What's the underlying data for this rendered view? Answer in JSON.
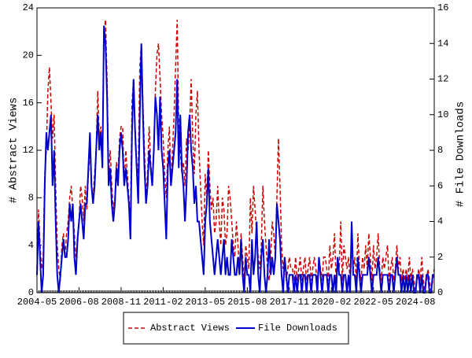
{
  "chart_data": {
    "type": "line",
    "x": [
      "2004-05",
      "2004-06",
      "2004-07",
      "2004-08",
      "2004-09",
      "2004-10",
      "2004-11",
      "2004-12",
      "2005-01",
      "2005-02",
      "2005-03",
      "2005-04",
      "2005-05",
      "2005-06",
      "2005-07",
      "2005-08",
      "2005-09",
      "2005-10",
      "2005-11",
      "2005-12",
      "2006-01",
      "2006-02",
      "2006-03",
      "2006-04",
      "2006-05",
      "2006-06",
      "2006-07",
      "2006-08",
      "2006-09",
      "2006-10",
      "2006-11",
      "2006-12",
      "2007-01",
      "2007-02",
      "2007-03",
      "2007-04",
      "2007-05",
      "2007-06",
      "2007-07",
      "2007-08",
      "2007-09",
      "2007-10",
      "2007-11",
      "2007-12",
      "2008-01",
      "2008-02",
      "2008-03",
      "2008-04",
      "2008-05",
      "2008-06",
      "2008-07",
      "2008-08",
      "2008-09",
      "2008-10",
      "2008-11",
      "2008-12",
      "2009-01",
      "2009-02",
      "2009-03",
      "2009-04",
      "2009-05",
      "2009-06",
      "2009-07",
      "2009-08",
      "2009-09",
      "2009-10",
      "2009-11",
      "2009-12",
      "2010-01",
      "2010-02",
      "2010-03",
      "2010-04",
      "2010-05",
      "2010-06",
      "2010-07",
      "2010-08",
      "2010-09",
      "2010-10",
      "2010-11",
      "2010-12",
      "2011-01",
      "2011-02",
      "2011-03",
      "2011-04",
      "2011-05",
      "2011-06",
      "2011-07",
      "2011-08",
      "2011-09",
      "2011-10",
      "2011-11",
      "2011-12",
      "2012-01",
      "2012-02",
      "2012-03",
      "2012-04",
      "2012-05",
      "2012-06",
      "2012-07",
      "2012-08",
      "2012-09",
      "2012-10",
      "2012-11",
      "2012-12",
      "2013-01",
      "2013-02",
      "2013-03",
      "2013-04",
      "2013-05",
      "2013-06",
      "2013-07",
      "2013-08",
      "2013-09",
      "2013-10",
      "2013-11",
      "2013-12",
      "2014-01",
      "2014-02",
      "2014-03",
      "2014-04",
      "2014-05",
      "2014-06",
      "2014-07",
      "2014-08",
      "2014-09",
      "2014-10",
      "2014-11",
      "2014-12",
      "2015-01",
      "2015-02",
      "2015-03",
      "2015-04",
      "2015-05",
      "2015-06",
      "2015-07",
      "2015-08",
      "2015-09",
      "2015-10",
      "2015-11",
      "2015-12",
      "2016-01",
      "2016-02",
      "2016-03",
      "2016-04",
      "2016-05",
      "2016-06",
      "2016-07",
      "2016-08",
      "2016-09",
      "2016-10",
      "2016-11",
      "2016-12",
      "2017-01",
      "2017-02",
      "2017-03",
      "2017-04",
      "2017-05",
      "2017-06",
      "2017-07",
      "2017-08",
      "2017-09",
      "2017-10",
      "2017-11",
      "2017-12",
      "2018-01",
      "2018-02",
      "2018-03",
      "2018-04",
      "2018-05",
      "2018-06",
      "2018-07",
      "2018-08",
      "2018-09",
      "2018-10",
      "2018-11",
      "2018-12",
      "2019-01",
      "2019-02",
      "2019-03",
      "2019-04",
      "2019-05",
      "2019-06",
      "2019-07",
      "2019-08",
      "2019-09",
      "2019-10",
      "2019-11",
      "2019-12",
      "2020-01",
      "2020-02",
      "2020-03",
      "2020-04",
      "2020-05",
      "2020-06",
      "2020-07",
      "2020-08",
      "2020-09",
      "2020-10",
      "2020-11",
      "2020-12",
      "2021-01",
      "2021-02",
      "2021-03",
      "2021-04",
      "2021-05",
      "2021-06",
      "2021-07",
      "2021-08",
      "2021-09",
      "2021-10",
      "2021-11",
      "2021-12",
      "2022-01",
      "2022-02",
      "2022-03",
      "2022-04",
      "2022-05",
      "2022-06",
      "2022-07",
      "2022-08",
      "2022-09",
      "2022-10",
      "2022-11",
      "2022-12",
      "2023-01",
      "2023-02",
      "2023-03",
      "2023-04",
      "2023-05",
      "2023-06",
      "2023-07",
      "2023-08",
      "2023-09",
      "2023-10",
      "2023-11",
      "2023-12",
      "2024-01",
      "2024-02",
      "2024-03",
      "2024-04",
      "2024-05",
      "2024-06",
      "2024-07",
      "2024-08",
      "2024-09",
      "2024-10",
      "2024-11",
      "2024-12",
      "2025-01",
      "2025-02",
      "2025-03",
      "2025-04",
      "2025-05",
      "2025-06",
      "2025-07",
      "2025-08"
    ],
    "xticks": [
      "2004-05",
      "2006-08",
      "2008-11",
      "2011-02",
      "2013-05",
      "2015-08",
      "2017-11",
      "2020-02",
      "2022-05",
      "2024-08"
    ],
    "ylabel": "# Abstract Views",
    "y2label": "# File Downloads",
    "ylim": [
      0,
      24
    ],
    "yticks": [
      0,
      4,
      8,
      12,
      16,
      20,
      24
    ],
    "y2lim": [
      0,
      16
    ],
    "y2ticks": [
      0,
      2,
      4,
      6,
      8,
      10,
      12,
      14,
      16
    ],
    "legend": "bottom",
    "series": [
      {
        "name": "Abstract Views",
        "color": "#cc0000",
        "dashed": true,
        "values": [
          2,
          7,
          4,
          2,
          3,
          10,
          12,
          17,
          19,
          16,
          13,
          15,
          9,
          4,
          2,
          1,
          4,
          5,
          3,
          5,
          6,
          8,
          9,
          7,
          5,
          3,
          4,
          6,
          9,
          8,
          6,
          9,
          7,
          10,
          12,
          9,
          8,
          10,
          12,
          17,
          13,
          14,
          11,
          22,
          23,
          18,
          10,
          12,
          9,
          7,
          8,
          11,
          10,
          13,
          14,
          14,
          9,
          12,
          10,
          8,
          6,
          16,
          18,
          14,
          11,
          10,
          19,
          21,
          16,
          12,
          8,
          10,
          14,
          11,
          9,
          12,
          17,
          20,
          21,
          18,
          15,
          13,
          10,
          8,
          12,
          14,
          9,
          12,
          15,
          19,
          23,
          14,
          12,
          10,
          11,
          9,
          13,
          12,
          14,
          18,
          13,
          10,
          15,
          17,
          12,
          9,
          6,
          4,
          10,
          8,
          12,
          9,
          7,
          8,
          5,
          6,
          9,
          6,
          4,
          8,
          7,
          4,
          5,
          9,
          8,
          6,
          4,
          3,
          6,
          4,
          2,
          5,
          3,
          1,
          4,
          3,
          2,
          8,
          5,
          9,
          7,
          5,
          3,
          2,
          4,
          9,
          6,
          4,
          2,
          1,
          3,
          6,
          5,
          3,
          8,
          13,
          9,
          4,
          2,
          3,
          1,
          2,
          3,
          2,
          2,
          1,
          3,
          1,
          2,
          3,
          1,
          2,
          3,
          1,
          2,
          3,
          1,
          2,
          3,
          2,
          1,
          3,
          2,
          1,
          3,
          3,
          2,
          1,
          4,
          2,
          3,
          5,
          1,
          3,
          2,
          6,
          1,
          4,
          3,
          2,
          3,
          1,
          4,
          2,
          3,
          1,
          5,
          2,
          1,
          3,
          2,
          4,
          2,
          5,
          3,
          1,
          4,
          2,
          3,
          5,
          2,
          1,
          3,
          2,
          3,
          4,
          1,
          2,
          3,
          1,
          2,
          4,
          2,
          3,
          1,
          2,
          1,
          2,
          1,
          3,
          1,
          2,
          1,
          0,
          1,
          2,
          1,
          3,
          1,
          0,
          1,
          2,
          1,
          0,
          1,
          2
        ]
      },
      {
        "name": "File Downloads",
        "color": "#0000cc",
        "dashed": false,
        "axis": "y2",
        "values": [
          1,
          4,
          2,
          0,
          1,
          6,
          9,
          8,
          9,
          10,
          6,
          8,
          4,
          1,
          0,
          1,
          2,
          3,
          2,
          2,
          3,
          5,
          4,
          5,
          2,
          1,
          3,
          4,
          5,
          4,
          3,
          5,
          5,
          7,
          9,
          6,
          5,
          6,
          8,
          10,
          8,
          9,
          7,
          15,
          14,
          11,
          6,
          7,
          5,
          4,
          5,
          7,
          6,
          8,
          9,
          8,
          6,
          7,
          6,
          5,
          3,
          9,
          12,
          9,
          7,
          5,
          10,
          14,
          10,
          7,
          5,
          6,
          8,
          7,
          6,
          8,
          11,
          10,
          8,
          11,
          8,
          7,
          5,
          3,
          7,
          8,
          6,
          7,
          8,
          9,
          12,
          7,
          10,
          7,
          6,
          4,
          6,
          9,
          10,
          8,
          7,
          5,
          6,
          4,
          4,
          3,
          2,
          1,
          4,
          5,
          7,
          4,
          3,
          2,
          1,
          2,
          3,
          2,
          1,
          2,
          3,
          1,
          2,
          1,
          1,
          3,
          2,
          1,
          1,
          2,
          1,
          3,
          1,
          0,
          2,
          1,
          1,
          0,
          3,
          1,
          2,
          4,
          1,
          0,
          2,
          3,
          1,
          0,
          1,
          3,
          1,
          2,
          1,
          2,
          5,
          4,
          3,
          1,
          0,
          2,
          1,
          0,
          1,
          1,
          1,
          0,
          1,
          0,
          1,
          1,
          0,
          1,
          1,
          0,
          1,
          1,
          0,
          1,
          1,
          1,
          0,
          2,
          1,
          0,
          1,
          1,
          1,
          0,
          1,
          1,
          0,
          1,
          0,
          2,
          1,
          1,
          0,
          1,
          1,
          0,
          1,
          0,
          4,
          1,
          1,
          0,
          2,
          1,
          0,
          1,
          1,
          1,
          1,
          2,
          1,
          0,
          1,
          1,
          1,
          2,
          1,
          0,
          1,
          1,
          1,
          1,
          0,
          1,
          1,
          0,
          1,
          2,
          1,
          1,
          0,
          1,
          0,
          1,
          0,
          1,
          0,
          1,
          0,
          0,
          1,
          1,
          0,
          1,
          0,
          0,
          1,
          1,
          0,
          0,
          1,
          1
        ]
      }
    ]
  }
}
